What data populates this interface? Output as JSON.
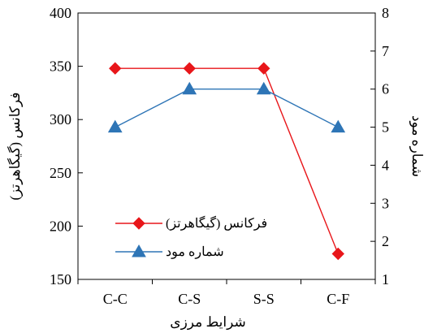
{
  "chart_data": {
    "type": "line",
    "title": "",
    "xlabel": "شرایط مرزی",
    "ylabel_left": "فرکانس (گیگاهرتز)",
    "ylabel_right": "شماره مود",
    "categories": [
      "C-C",
      "C-S",
      "S-S",
      "C-F"
    ],
    "ylim_left": [
      150,
      400
    ],
    "yticks_left": [
      150,
      200,
      250,
      300,
      350,
      400
    ],
    "ylim_right": [
      1,
      8
    ],
    "yticks_right": [
      1,
      2,
      3,
      4,
      5,
      6,
      7,
      8
    ],
    "grid": false,
    "legend_position": "bottom-left",
    "series": [
      {
        "name": "فرکانس (گیگاهرتز)",
        "axis": "left",
        "values": [
          348,
          348,
          348,
          174
        ],
        "color": "#e8161a",
        "marker": "diamond"
      },
      {
        "name": "شماره مود",
        "axis": "right",
        "values": [
          5,
          6,
          6,
          5
        ],
        "color": "#2e75b6",
        "marker": "triangle"
      }
    ]
  }
}
